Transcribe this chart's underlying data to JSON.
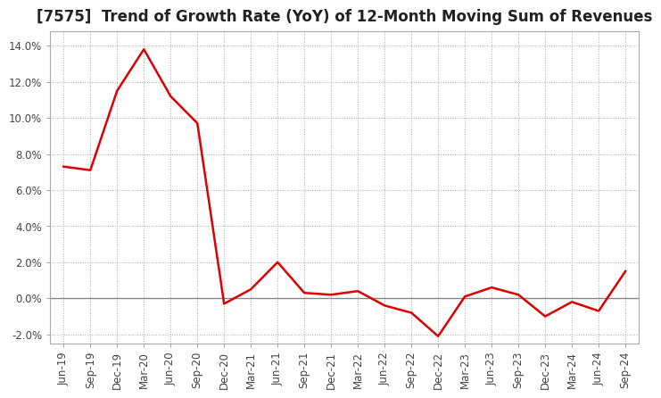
{
  "title": "[7575]  Trend of Growth Rate (YoY) of 12-Month Moving Sum of Revenues",
  "x_labels": [
    "Jun-19",
    "Sep-19",
    "Dec-19",
    "Mar-20",
    "Jun-20",
    "Sep-20",
    "Dec-20",
    "Mar-21",
    "Jun-21",
    "Sep-21",
    "Dec-21",
    "Mar-22",
    "Jun-22",
    "Sep-22",
    "Dec-22",
    "Mar-23",
    "Jun-23",
    "Sep-23",
    "Dec-23",
    "Mar-24",
    "Jun-24",
    "Sep-24"
  ],
  "y_values": [
    0.073,
    0.071,
    0.115,
    0.138,
    0.112,
    0.097,
    -0.003,
    0.005,
    0.02,
    0.003,
    0.002,
    0.004,
    -0.004,
    -0.008,
    -0.021,
    0.001,
    0.006,
    0.002,
    -0.01,
    -0.002,
    -0.007,
    0.015
  ],
  "ylim": [
    -0.025,
    0.148
  ],
  "yticks": [
    -0.02,
    0.0,
    0.02,
    0.04,
    0.06,
    0.08,
    0.1,
    0.12,
    0.14
  ],
  "line_color": "#dd0000",
  "background_color": "#ffffff",
  "grid_color": "#aaaaaa",
  "spine_color": "#aaaaaa",
  "title_fontsize": 12,
  "tick_fontsize": 8.5
}
